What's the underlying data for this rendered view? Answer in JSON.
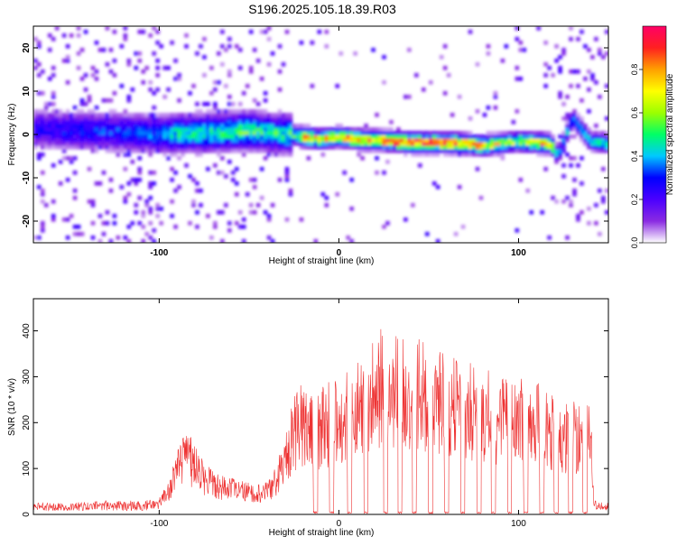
{
  "title": "S196.2025.105.18.39.R03",
  "chart_data": [
    {
      "type": "heatmap",
      "xlabel": "Height of straight line (km)",
      "ylabel": "Frequency (Hz)",
      "xlim": [
        -170,
        150
      ],
      "ylim": [
        -25,
        25
      ],
      "x_ticks": [
        -100,
        0,
        100
      ],
      "y_ticks": [
        -20,
        -10,
        0,
        10,
        20
      ],
      "colorbar": {
        "label": "Normalized spectral amplitude",
        "range": [
          0,
          1
        ],
        "ticks": [
          0.0,
          0.2,
          0.4,
          0.6,
          0.8
        ],
        "tick_labels": [
          "0.0",
          "0.2",
          "0.4",
          "0.6",
          "0.8"
        ],
        "colors": [
          "#ffffff",
          "#8a2be2",
          "#4b00ff",
          "#0000ff",
          "#00c8ff",
          "#00ff66",
          "#9cff00",
          "#ffff00",
          "#ffa000",
          "#ff2020",
          "#ff0066"
        ]
      },
      "ridge": [
        {
          "x": -170,
          "y": 1.5,
          "a": 0.25
        },
        {
          "x": -150,
          "y": 1.0,
          "a": 0.28
        },
        {
          "x": -130,
          "y": 0.8,
          "a": 0.3
        },
        {
          "x": -110,
          "y": 0.5,
          "a": 0.32
        },
        {
          "x": -100,
          "y": 0.0,
          "a": 0.35
        },
        {
          "x": -90,
          "y": 0.3,
          "a": 0.45
        },
        {
          "x": -70,
          "y": 0.5,
          "a": 0.48
        },
        {
          "x": -50,
          "y": 1.0,
          "a": 0.5
        },
        {
          "x": -40,
          "y": 0.5,
          "a": 0.45
        },
        {
          "x": -25,
          "y": 0.0,
          "a": 0.5
        },
        {
          "x": -20,
          "y": -0.5,
          "a": 0.75
        },
        {
          "x": -10,
          "y": -1.0,
          "a": 0.72
        },
        {
          "x": 0,
          "y": -0.5,
          "a": 0.8
        },
        {
          "x": 10,
          "y": -1.0,
          "a": 0.75
        },
        {
          "x": 20,
          "y": -1.2,
          "a": 0.8
        },
        {
          "x": 30,
          "y": -1.5,
          "a": 0.85
        },
        {
          "x": 40,
          "y": -1.8,
          "a": 0.9
        },
        {
          "x": 50,
          "y": -1.8,
          "a": 0.88
        },
        {
          "x": 60,
          "y": -1.8,
          "a": 0.86
        },
        {
          "x": 70,
          "y": -2.0,
          "a": 0.8
        },
        {
          "x": 80,
          "y": -2.5,
          "a": 0.75
        },
        {
          "x": 90,
          "y": -2.0,
          "a": 0.65
        },
        {
          "x": 100,
          "y": -1.5,
          "a": 0.6
        },
        {
          "x": 110,
          "y": -1.8,
          "a": 0.7
        },
        {
          "x": 118,
          "y": -2.0,
          "a": 0.72
        },
        {
          "x": 122,
          "y": -5.0,
          "a": 0.3
        },
        {
          "x": 130,
          "y": 4.0,
          "a": 0.4
        },
        {
          "x": 140,
          "y": -1.5,
          "a": 0.4
        },
        {
          "x": 148,
          "y": -2.0,
          "a": 0.45
        }
      ]
    },
    {
      "type": "line",
      "xlabel": "Height of straight line (km)",
      "ylabel": "SNR (10 * v/v)",
      "xlim": [
        -170,
        150
      ],
      "ylim": [
        0,
        470
      ],
      "x_ticks": [
        -100,
        0,
        100
      ],
      "y_ticks": [
        0,
        100,
        200,
        300,
        400
      ],
      "color": "#ee3333",
      "envelope": [
        {
          "x": -170,
          "y": 25
        },
        {
          "x": -150,
          "y": 25
        },
        {
          "x": -130,
          "y": 30
        },
        {
          "x": -110,
          "y": 30
        },
        {
          "x": -100,
          "y": 35
        },
        {
          "x": -95,
          "y": 70
        },
        {
          "x": -90,
          "y": 140
        },
        {
          "x": -85,
          "y": 180
        },
        {
          "x": -80,
          "y": 160
        },
        {
          "x": -75,
          "y": 120
        },
        {
          "x": -70,
          "y": 100
        },
        {
          "x": -60,
          "y": 80
        },
        {
          "x": -50,
          "y": 70
        },
        {
          "x": -40,
          "y": 70
        },
        {
          "x": -35,
          "y": 110
        },
        {
          "x": -30,
          "y": 170
        },
        {
          "x": -25,
          "y": 260
        },
        {
          "x": -20,
          "y": 290
        },
        {
          "x": -15,
          "y": 270
        },
        {
          "x": -10,
          "y": 280
        },
        {
          "x": -5,
          "y": 290
        },
        {
          "x": 0,
          "y": 300
        },
        {
          "x": 10,
          "y": 330
        },
        {
          "x": 20,
          "y": 400
        },
        {
          "x": 25,
          "y": 420
        },
        {
          "x": 30,
          "y": 410
        },
        {
          "x": 40,
          "y": 390
        },
        {
          "x": 50,
          "y": 375
        },
        {
          "x": 60,
          "y": 355
        },
        {
          "x": 70,
          "y": 340
        },
        {
          "x": 80,
          "y": 320
        },
        {
          "x": 90,
          "y": 305
        },
        {
          "x": 100,
          "y": 300
        },
        {
          "x": 110,
          "y": 290
        },
        {
          "x": 120,
          "y": 265
        },
        {
          "x": 130,
          "y": 250
        },
        {
          "x": 140,
          "y": 250
        },
        {
          "x": 142,
          "y": 30
        },
        {
          "x": 150,
          "y": 25
        }
      ],
      "dropouts": [
        -13,
        -4,
        6,
        15,
        26,
        34,
        42,
        51,
        60,
        69,
        78,
        86,
        95,
        104,
        113,
        121,
        129,
        137
      ],
      "dropout_level": 2
    }
  ]
}
